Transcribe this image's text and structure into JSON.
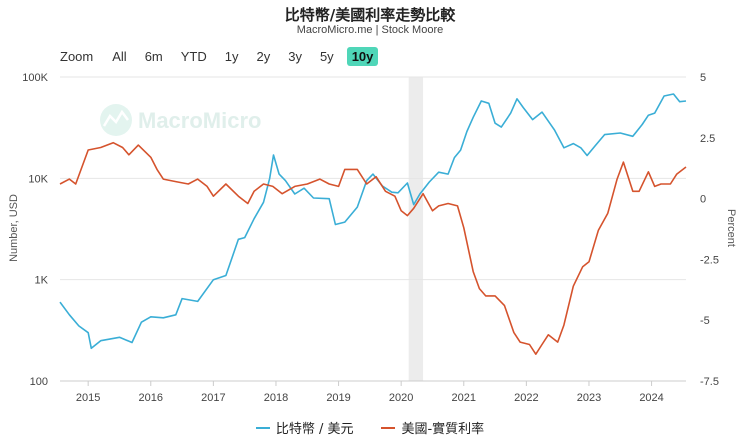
{
  "header": {
    "title": "比特幣/美國利率走勢比較",
    "subtitle": "MacroMicro.me | Stock Moore"
  },
  "zoom": {
    "label": "Zoom",
    "options": [
      "All",
      "6m",
      "YTD",
      "1y",
      "2y",
      "3y",
      "5y",
      "10y"
    ],
    "active": "10y"
  },
  "watermark": "MacroMicro",
  "chart_data": {
    "type": "line",
    "title": "比特幣/美國利率走勢比較",
    "x_ticks": [
      "2015",
      "2016",
      "2017",
      "2018",
      "2019",
      "2020",
      "2021",
      "2022",
      "2023",
      "2024"
    ],
    "x_range": [
      2014.55,
      2024.55
    ],
    "left_axis": {
      "label": "Number, USD",
      "scale": "log",
      "range": [
        100,
        100000
      ],
      "ticks": [
        100,
        1000,
        10000,
        100000
      ],
      "tick_labels": [
        "100",
        "1K",
        "10K",
        "100K"
      ]
    },
    "right_axis": {
      "label": "Percent",
      "range": [
        -7.5,
        5
      ],
      "ticks": [
        5,
        2.5,
        0,
        -2.5,
        -5,
        -7.5
      ],
      "tick_labels": [
        "5",
        "2.5",
        "0",
        "-2.5",
        "-5",
        "-7.5"
      ]
    },
    "shaded_region": [
      2020.12,
      2020.35
    ],
    "series": [
      {
        "name": "比特幣 / 美元",
        "axis": "left",
        "color": "#3aaed6",
        "x": [
          2014.55,
          2014.7,
          2014.85,
          2015.0,
          2015.05,
          2015.2,
          2015.5,
          2015.7,
          2015.85,
          2016.0,
          2016.2,
          2016.4,
          2016.5,
          2016.75,
          2017.0,
          2017.2,
          2017.4,
          2017.5,
          2017.65,
          2017.8,
          2017.9,
          2017.96,
          2018.05,
          2018.15,
          2018.3,
          2018.45,
          2018.6,
          2018.85,
          2018.95,
          2019.1,
          2019.3,
          2019.45,
          2019.55,
          2019.7,
          2019.85,
          2019.95,
          2020.1,
          2020.2,
          2020.3,
          2020.45,
          2020.6,
          2020.75,
          2020.85,
          2020.95,
          2021.05,
          2021.15,
          2021.28,
          2021.4,
          2021.5,
          2021.6,
          2021.75,
          2021.85,
          2021.95,
          2022.1,
          2022.25,
          2022.45,
          2022.6,
          2022.75,
          2022.87,
          2022.97,
          2023.1,
          2023.25,
          2023.5,
          2023.7,
          2023.85,
          2023.95,
          2024.05,
          2024.2,
          2024.35,
          2024.45,
          2024.55
        ],
        "values": [
          600,
          450,
          350,
          300,
          210,
          250,
          270,
          240,
          380,
          430,
          420,
          450,
          650,
          610,
          1000,
          1100,
          2500,
          2600,
          4000,
          5800,
          10000,
          17000,
          11000,
          9500,
          7000,
          8000,
          6400,
          6300,
          3500,
          3700,
          5200,
          9500,
          11000,
          8400,
          7300,
          7200,
          9000,
          5500,
          7000,
          9200,
          11500,
          11000,
          16000,
          19000,
          29000,
          40000,
          58000,
          55000,
          35000,
          32000,
          44000,
          61000,
          50000,
          38000,
          45000,
          30000,
          20000,
          22000,
          20000,
          16800,
          21000,
          27000,
          28000,
          26000,
          34000,
          42000,
          44000,
          65000,
          68000,
          57000,
          58000
        ]
      },
      {
        "name": "美國-實質利率",
        "axis": "right",
        "color": "#d5532d",
        "x": [
          2014.55,
          2014.7,
          2014.8,
          2015.0,
          2015.2,
          2015.4,
          2015.55,
          2015.65,
          2015.8,
          2016.0,
          2016.1,
          2016.2,
          2016.4,
          2016.6,
          2016.75,
          2016.9,
          2017.0,
          2017.2,
          2017.4,
          2017.55,
          2017.65,
          2017.8,
          2017.95,
          2018.1,
          2018.3,
          2018.5,
          2018.7,
          2018.85,
          2019.0,
          2019.1,
          2019.3,
          2019.45,
          2019.6,
          2019.75,
          2019.9,
          2020.0,
          2020.1,
          2020.2,
          2020.35,
          2020.5,
          2020.6,
          2020.75,
          2020.9,
          2021.0,
          2021.15,
          2021.25,
          2021.35,
          2021.5,
          2021.65,
          2021.8,
          2021.9,
          2022.05,
          2022.15,
          2022.25,
          2022.35,
          2022.5,
          2022.6,
          2022.75,
          2022.9,
          2023.0,
          2023.15,
          2023.3,
          2023.45,
          2023.55,
          2023.7,
          2023.8,
          2023.95,
          2024.05,
          2024.15,
          2024.3,
          2024.4,
          2024.55
        ],
        "values": [
          0.6,
          0.8,
          0.6,
          2.0,
          2.1,
          2.3,
          2.1,
          1.8,
          2.2,
          1.7,
          1.2,
          0.8,
          0.7,
          0.6,
          0.8,
          0.5,
          0.1,
          0.6,
          0.1,
          -0.2,
          0.3,
          0.6,
          0.5,
          0.2,
          0.5,
          0.6,
          0.8,
          0.6,
          0.5,
          1.2,
          1.2,
          0.6,
          0.9,
          0.3,
          0.1,
          -0.5,
          -0.7,
          -0.4,
          0.2,
          -0.5,
          -0.3,
          -0.2,
          -0.3,
          -1.2,
          -3.0,
          -3.7,
          -4.0,
          -4.0,
          -4.4,
          -5.5,
          -5.9,
          -6.0,
          -6.4,
          -6.0,
          -5.6,
          -5.9,
          -5.2,
          -3.6,
          -2.8,
          -2.6,
          -1.3,
          -0.6,
          0.8,
          1.5,
          0.3,
          0.3,
          1.1,
          0.5,
          0.6,
          0.6,
          1.0,
          1.3
        ]
      }
    ]
  },
  "legend": [
    {
      "label": "比特幣 / 美元",
      "color": "#3aaed6"
    },
    {
      "label": "美國-實質利率",
      "color": "#d5532d"
    }
  ]
}
